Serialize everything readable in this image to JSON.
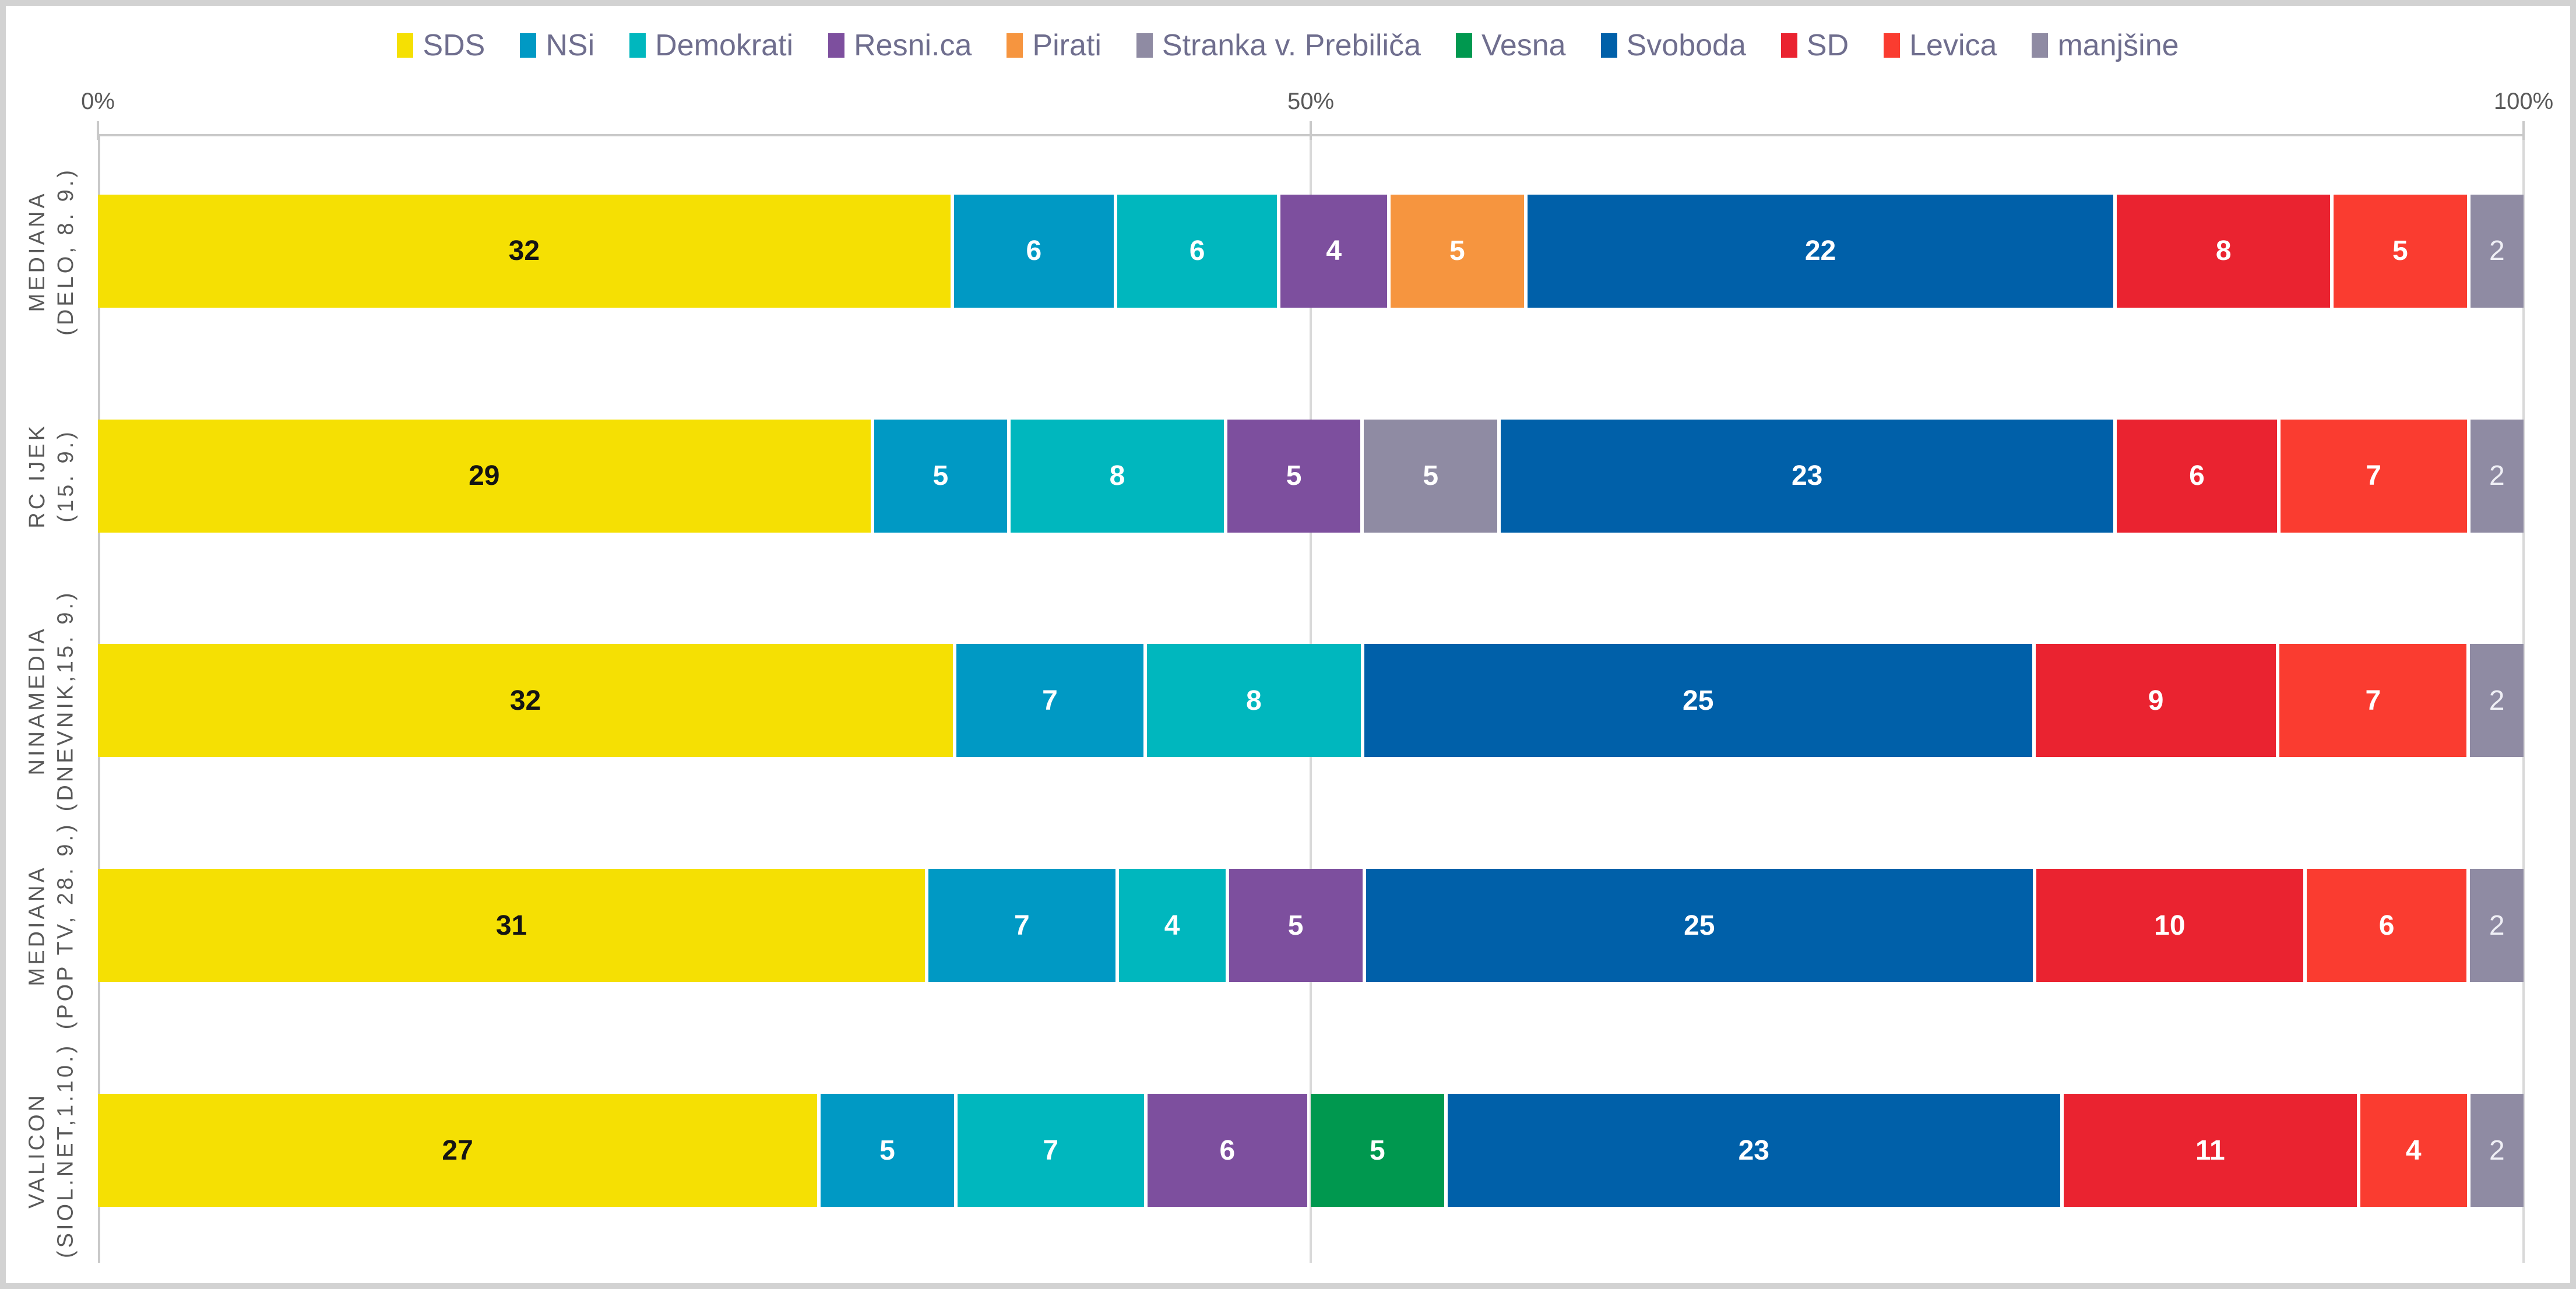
{
  "chart_data": {
    "type": "bar",
    "orientation": "horizontal",
    "stacked": true,
    "normalized_to_row_sum": true,
    "categories": [
      [
        "MEDIANA",
        "(DELO, 8. 9.)"
      ],
      [
        "RC IJEK",
        "(15. 9.)"
      ],
      [
        "NINAMEDIA",
        "(DNEVNIK,15. 9.)"
      ],
      [
        "MEDIANA",
        "(POP TV, 28. 9.)"
      ],
      [
        "VALICON",
        "(SIOL.NET,1.10.)"
      ]
    ],
    "series": [
      {
        "name": "SDS",
        "color": "#f5e003",
        "value_label": "dark",
        "values": [
          32,
          29,
          32,
          31,
          27
        ]
      },
      {
        "name": "NSi",
        "color": "#0099c4",
        "value_label": "light",
        "values": [
          6,
          5,
          7,
          7,
          5
        ]
      },
      {
        "name": "Demokrati",
        "color": "#00b7be",
        "value_label": "light",
        "values": [
          6,
          8,
          8,
          4,
          7
        ]
      },
      {
        "name": "Resni.ca",
        "color": "#7d4f9e",
        "value_label": "light",
        "values": [
          4,
          5,
          null,
          5,
          6
        ]
      },
      {
        "name": "Pirati",
        "color": "#f6953f",
        "value_label": "light",
        "values": [
          5,
          null,
          null,
          null,
          null
        ]
      },
      {
        "name": "Stranka v. Prebiliča",
        "color": "#8f8ba3",
        "value_label": "light",
        "values": [
          null,
          5,
          null,
          null,
          null
        ]
      },
      {
        "name": "Vesna",
        "color": "#00984f",
        "value_label": "light",
        "values": [
          null,
          null,
          null,
          null,
          5
        ]
      },
      {
        "name": "Svoboda",
        "color": "#0060a9",
        "value_label": "light",
        "values": [
          22,
          23,
          25,
          25,
          23
        ]
      },
      {
        "name": "SD",
        "color": "#ea2330",
        "value_label": "light",
        "values": [
          8,
          6,
          9,
          10,
          11
        ]
      },
      {
        "name": "Levica",
        "color": "#fa3c30",
        "value_label": "light",
        "values": [
          5,
          7,
          7,
          6,
          4
        ]
      },
      {
        "name": "manjšine",
        "color": "#8f8ba3",
        "value_label": "muted",
        "values": [
          2,
          2,
          2,
          2,
          2
        ]
      }
    ],
    "x_axis": {
      "ticks": [
        {
          "label": "0%",
          "pct": 0
        },
        {
          "label": "50%",
          "pct": 50
        },
        {
          "label": "100%",
          "pct": 100
        }
      ],
      "range": [
        0,
        100
      ],
      "gridlines_at_pct": [
        50,
        100
      ]
    },
    "legend_position": "top",
    "title": "",
    "xlabel": "",
    "ylabel": ""
  },
  "colors": {
    "legend_text": "#6f6e8e",
    "axis_text": "#595959",
    "axis_line": "#c9c9c9",
    "gridline": "#d9d9d9",
    "frame_border": "#d2d2d2"
  }
}
